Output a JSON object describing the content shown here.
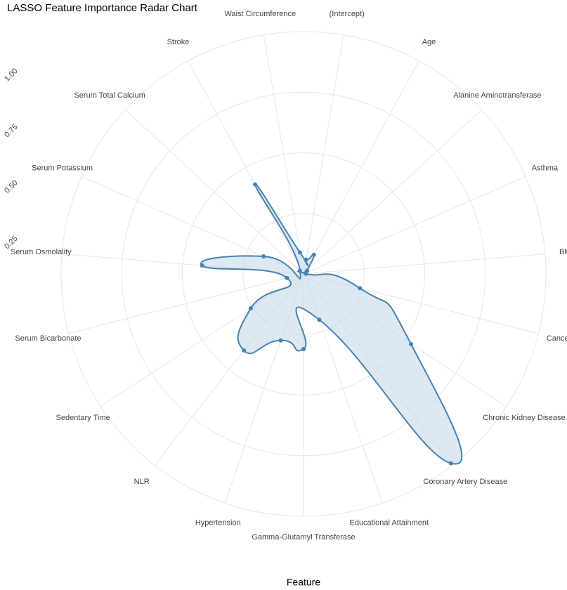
{
  "chart_data": {
    "type": "radar",
    "title": "LASSO Feature Importance Radar Chart",
    "x_label": "Feature",
    "categories": [
      "(Intercept)",
      "Age",
      "Alanine Aminotransferase",
      "Asthma",
      "BMI",
      "Cancer",
      "Chronic Kidney Disease",
      "Coronary Artery Disease",
      "Educational Attainment",
      "Gamma-Glutamyl Transferase",
      "Hypertension",
      "NLR",
      "Sedentary Time",
      "Serum Bicarbonate",
      "Serum Osmolality",
      "Serum Potassium",
      "Serum Total Calcium",
      "Stroke",
      "Waist Circumference"
    ],
    "values": [
      0.06,
      0.09,
      0.02,
      0.01,
      0.01,
      0.24,
      0.53,
      0.99,
      0.2,
      0.31,
      0.29,
      0.4,
      0.26,
      0.07,
      0.42,
      0.18,
      0.02,
      0.42,
      0.09
    ],
    "color": "#4682b4",
    "fill_color": "#c6d8e8",
    "ylim": [
      0,
      1
    ],
    "yticks": [
      {
        "value": 0.25,
        "label": "0.25"
      },
      {
        "value": 0.5,
        "label": "0.50"
      },
      {
        "value": 0.75,
        "label": "0.75"
      },
      {
        "value": 1,
        "label": "1.00"
      }
    ],
    "grid": true
  }
}
